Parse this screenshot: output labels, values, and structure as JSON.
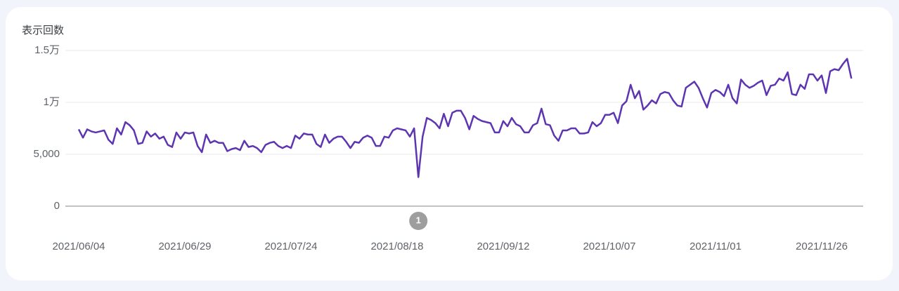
{
  "chart_data": {
    "type": "line",
    "title": "表示回数",
    "x": [
      "2021/06/04",
      "2021/06/05",
      "2021/06/06",
      "2021/06/07",
      "2021/06/08",
      "2021/06/09",
      "2021/06/10",
      "2021/06/11",
      "2021/06/12",
      "2021/06/13",
      "2021/06/14",
      "2021/06/15",
      "2021/06/16",
      "2021/06/17",
      "2021/06/18",
      "2021/06/19",
      "2021/06/20",
      "2021/06/21",
      "2021/06/22",
      "2021/06/23",
      "2021/06/24",
      "2021/06/25",
      "2021/06/26",
      "2021/06/27",
      "2021/06/28",
      "2021/06/29",
      "2021/06/30",
      "2021/07/01",
      "2021/07/02",
      "2021/07/03",
      "2021/07/04",
      "2021/07/05",
      "2021/07/06",
      "2021/07/07",
      "2021/07/08",
      "2021/07/09",
      "2021/07/10",
      "2021/07/11",
      "2021/07/12",
      "2021/07/13",
      "2021/07/14",
      "2021/07/15",
      "2021/07/16",
      "2021/07/17",
      "2021/07/18",
      "2021/07/19",
      "2021/07/20",
      "2021/07/21",
      "2021/07/22",
      "2021/07/23",
      "2021/07/24",
      "2021/07/25",
      "2021/07/26",
      "2021/07/27",
      "2021/07/28",
      "2021/07/29",
      "2021/07/30",
      "2021/07/31",
      "2021/08/01",
      "2021/08/02",
      "2021/08/03",
      "2021/08/04",
      "2021/08/05",
      "2021/08/06",
      "2021/08/07",
      "2021/08/08",
      "2021/08/09",
      "2021/08/10",
      "2021/08/11",
      "2021/08/12",
      "2021/08/13",
      "2021/08/14",
      "2021/08/15",
      "2021/08/16",
      "2021/08/17",
      "2021/08/18",
      "2021/08/19",
      "2021/08/20",
      "2021/08/21",
      "2021/08/22",
      "2021/08/23",
      "2021/08/24",
      "2021/08/25",
      "2021/08/26",
      "2021/08/27",
      "2021/08/28",
      "2021/08/29",
      "2021/08/30",
      "2021/08/31",
      "2021/09/01",
      "2021/09/02",
      "2021/09/03",
      "2021/09/04",
      "2021/09/05",
      "2021/09/06",
      "2021/09/07",
      "2021/09/08",
      "2021/09/09",
      "2021/09/10",
      "2021/09/11",
      "2021/09/12",
      "2021/09/13",
      "2021/09/14",
      "2021/09/15",
      "2021/09/16",
      "2021/09/17",
      "2021/09/18",
      "2021/09/19",
      "2021/09/20",
      "2021/09/21",
      "2021/09/22",
      "2021/09/23",
      "2021/09/24",
      "2021/09/25",
      "2021/09/26",
      "2021/09/27",
      "2021/09/28",
      "2021/09/29",
      "2021/09/30",
      "2021/10/01",
      "2021/10/02",
      "2021/10/03",
      "2021/10/04",
      "2021/10/05",
      "2021/10/06",
      "2021/10/07",
      "2021/10/08",
      "2021/10/09",
      "2021/10/10",
      "2021/10/11",
      "2021/10/12",
      "2021/10/13",
      "2021/10/14",
      "2021/10/15",
      "2021/10/16",
      "2021/10/17",
      "2021/10/18",
      "2021/10/19",
      "2021/10/20",
      "2021/10/21",
      "2021/10/22",
      "2021/10/23",
      "2021/10/24",
      "2021/10/25",
      "2021/10/26",
      "2021/10/27",
      "2021/10/28",
      "2021/10/29",
      "2021/10/30",
      "2021/10/31",
      "2021/11/01",
      "2021/11/02",
      "2021/11/03",
      "2021/11/04",
      "2021/11/05",
      "2021/11/06",
      "2021/11/07",
      "2021/11/08",
      "2021/11/09",
      "2021/11/10",
      "2021/11/11",
      "2021/11/12",
      "2021/11/13",
      "2021/11/14",
      "2021/11/15",
      "2021/11/16",
      "2021/11/17",
      "2021/11/18",
      "2021/11/19",
      "2021/11/20",
      "2021/11/21",
      "2021/11/22",
      "2021/11/23",
      "2021/11/24",
      "2021/11/25",
      "2021/11/26",
      "2021/11/27",
      "2021/11/28",
      "2021/11/29",
      "2021/11/30",
      "2021/12/01",
      "2021/12/02",
      "2021/12/03"
    ],
    "values": [
      7400,
      6600,
      7400,
      7200,
      7100,
      7200,
      7300,
      6400,
      6000,
      7500,
      6900,
      8100,
      7800,
      7300,
      6000,
      6100,
      7200,
      6700,
      7000,
      6500,
      6700,
      5900,
      5700,
      7100,
      6500,
      7100,
      7000,
      7100,
      5800,
      5200,
      6900,
      6100,
      6300,
      6100,
      6100,
      5300,
      5500,
      5600,
      5400,
      6300,
      5700,
      5800,
      5600,
      5200,
      5900,
      6100,
      6200,
      5800,
      5600,
      5800,
      5600,
      6800,
      6500,
      7000,
      6900,
      6900,
      6000,
      5700,
      6900,
      6100,
      6500,
      6700,
      6700,
      6200,
      5600,
      6200,
      6100,
      6600,
      6800,
      6600,
      5800,
      5800,
      6700,
      6600,
      7300,
      7500,
      7400,
      7300,
      6700,
      7500,
      2800,
      6700,
      8500,
      8300,
      8000,
      7500,
      8900,
      7700,
      9000,
      9200,
      9200,
      8500,
      7400,
      8700,
      8400,
      8200,
      8100,
      8000,
      7100,
      7100,
      8200,
      7700,
      8500,
      7900,
      7700,
      7100,
      7100,
      7800,
      8000,
      9400,
      7900,
      7800,
      6800,
      6300,
      7300,
      7300,
      7500,
      7500,
      7000,
      7000,
      7100,
      8100,
      7700,
      8000,
      8800,
      8800,
      9000,
      8000,
      9700,
      10100,
      11700,
      10400,
      11100,
      9300,
      9700,
      10200,
      9900,
      10800,
      11000,
      10900,
      10200,
      9700,
      9600,
      11400,
      11700,
      12000,
      11400,
      10400,
      9500,
      10900,
      11200,
      11000,
      10600,
      11700,
      10400,
      9900,
      12200,
      11700,
      11400,
      11600,
      11900,
      12100,
      10700,
      11600,
      11700,
      12300,
      12100,
      12900,
      10800,
      10700,
      11700,
      11300,
      12700,
      12700,
      12100,
      12600,
      10900,
      13000,
      13200,
      13100,
      13700,
      14200,
      12300
    ],
    "color": "#5e35b1",
    "ylim": [
      0,
      15000
    ],
    "yticks": [
      0,
      {
        "value": 5000,
        "label": "5,000"
      },
      {
        "value": 10000,
        "label": "1万"
      },
      {
        "value": 15000,
        "label": "1.5万"
      }
    ],
    "xticks": [
      "2021/06/04",
      "2021/06/29",
      "2021/07/24",
      "2021/08/18",
      "2021/09/12",
      "2021/10/07",
      "2021/11/01",
      "2021/11/26"
    ],
    "grid": true,
    "annotations": [
      {
        "x": "2021/08/23",
        "label": "1"
      }
    ]
  }
}
